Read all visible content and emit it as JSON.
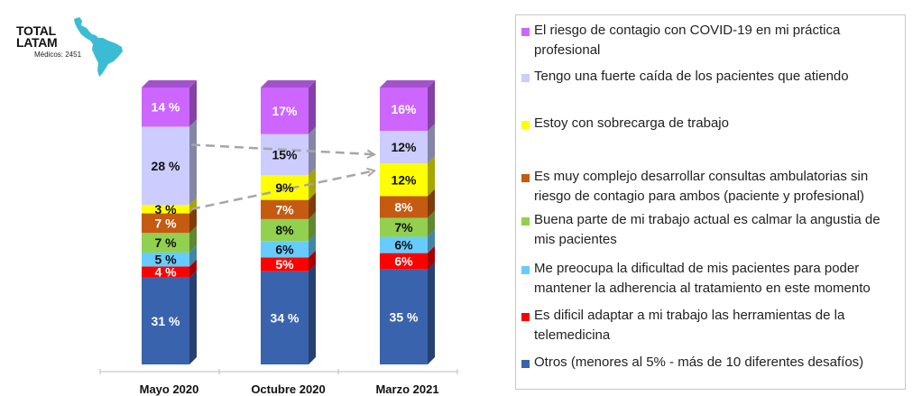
{
  "header": {
    "title_line1": "TOTAL",
    "title_line2": "LATAM",
    "subtitle": "Médicos: 2451",
    "map_icon": "latin-america-map-icon",
    "map_color": "#3CBCD4"
  },
  "chart_data": {
    "type": "bar",
    "stacked": true,
    "style": "3d-stacked-100",
    "title": "",
    "xlabel": "",
    "ylabel": "",
    "ylim": [
      0,
      100
    ],
    "grid": false,
    "legend_position": "right",
    "categories": [
      "Mayo 2020",
      "Octubre 2020",
      "Marzo 2021"
    ],
    "series": [
      {
        "name": "Otros (menores al 5% - más de 10 diferentes desafíos)",
        "color": "#3A63AD",
        "label_color": "#ffffff",
        "values": [
          31,
          34,
          35
        ],
        "labels": [
          "31 %",
          "34 %",
          "35 %"
        ]
      },
      {
        "name": "Es dificil adaptar a mi trabajo las herramientas de la telemedicina",
        "color": "#FF0000",
        "label_color": "#ffffff",
        "values": [
          4,
          5,
          6
        ],
        "labels": [
          "4 %",
          "5%",
          "6%"
        ]
      },
      {
        "name": "Me preocupa la dificultad de mis pacientes para poder mantener la adherencia al tratamiento en este momento",
        "color": "#66CCFF",
        "label_color": "#111111",
        "values": [
          5,
          6,
          6
        ],
        "labels": [
          "5 %",
          "6%",
          "6%"
        ]
      },
      {
        "name": "Buena parte de mi trabajo actual es calmar la angustia de mis pacientes",
        "color": "#92D050",
        "label_color": "#111111",
        "values": [
          7,
          8,
          7
        ],
        "labels": [
          "7 %",
          "8%",
          "7%"
        ]
      },
      {
        "name": "Es muy complejo desarrollar consultas ambulatorias sin riesgo de contagio para ambos (paciente y profesional)",
        "color": "#C55A11",
        "label_color": "#ffffff",
        "values": [
          7,
          7,
          8
        ],
        "labels": [
          "7 %",
          "7%",
          "8%"
        ]
      },
      {
        "name": "Estoy con sobrecarga de trabajo",
        "color": "#FFFF00",
        "label_color": "#111111",
        "values": [
          3,
          9,
          12
        ],
        "labels": [
          "3 %",
          "9%",
          "12%"
        ]
      },
      {
        "name": "Tengo una fuerte caída de los pacientes que atiendo",
        "color": "#CCCCFF",
        "label_color": "#111111",
        "values": [
          28,
          15,
          12
        ],
        "labels": [
          "28 %",
          "15%",
          "12%"
        ]
      },
      {
        "name": "El riesgo de contagio con COVID-19 en mi práctica profesional",
        "color": "#CC66FF",
        "label_color": "#ffffff",
        "values": [
          14,
          17,
          16
        ],
        "labels": [
          "14 %",
          "17%",
          "16%"
        ]
      }
    ],
    "annotations": [
      {
        "type": "dashed-arrow",
        "from_series": "Tengo una fuerte caída de los pacientes que atiendo",
        "from": "Mayo 2020",
        "to": "Marzo 2021"
      },
      {
        "type": "dashed-arrow",
        "from_series": "Estoy con sobrecarga de trabajo",
        "from": "Mayo 2020",
        "to": "Marzo 2021"
      }
    ]
  },
  "legend": {
    "items": [
      {
        "label_line1": "El riesgo de contagio con COVID-19 en mi práctica",
        "label_line2": "profesional",
        "color": "#CC66FF"
      },
      {
        "label_line1": "Tengo una fuerte caída de los pacientes que atiendo",
        "label_line2": "",
        "color": "#CCCCFF"
      },
      {
        "label_line1": "Estoy con sobrecarga de trabajo",
        "label_line2": "",
        "color": "#FFFF00"
      },
      {
        "label_line1": "Es muy complejo desarrollar consultas ambulatorias sin",
        "label_line2": "riesgo de contagio para ambos (paciente y profesional)",
        "color": "#C55A11"
      },
      {
        "label_line1": "Buena parte de mi trabajo actual es calmar la angustia de",
        "label_line2": "mis pacientes",
        "color": "#92D050"
      },
      {
        "label_line1": "Me preocupa la dificultad de mis pacientes para poder",
        "label_line2": "mantener la adherencia al tratamiento en este momento",
        "color": "#66CCFF"
      },
      {
        "label_line1": "Es dificil adaptar a mi trabajo las herramientas de la",
        "label_line2": "telemedicina",
        "color": "#FF0000"
      },
      {
        "label_line1": "Otros (menores al 5% - más de 10 diferentes desafíos)",
        "label_line2": "",
        "color": "#3A63AD"
      }
    ]
  }
}
